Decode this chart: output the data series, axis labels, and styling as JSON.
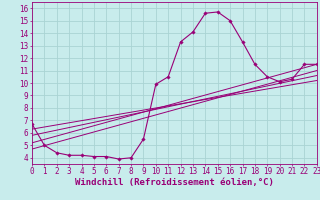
{
  "background_color": "#c8ecec",
  "grid_color": "#aad4d4",
  "line_color": "#990077",
  "xlabel": "Windchill (Refroidissement éolien,°C)",
  "xlim": [
    0,
    23
  ],
  "ylim": [
    3.5,
    16.5
  ],
  "yticks": [
    4,
    5,
    6,
    7,
    8,
    9,
    10,
    11,
    12,
    13,
    14,
    15,
    16
  ],
  "xticks": [
    0,
    1,
    2,
    3,
    4,
    5,
    6,
    7,
    8,
    9,
    10,
    11,
    12,
    13,
    14,
    15,
    16,
    17,
    18,
    19,
    20,
    21,
    22,
    23
  ],
  "curve1_x": [
    0,
    1,
    2,
    3,
    4,
    5,
    6,
    7,
    8,
    9,
    10,
    11,
    12,
    13,
    14,
    15,
    16,
    17,
    18,
    19,
    20,
    21,
    22,
    23
  ],
  "curve1_y": [
    6.7,
    5.0,
    4.4,
    4.2,
    4.2,
    4.1,
    4.1,
    3.9,
    4.0,
    5.5,
    9.9,
    10.5,
    13.3,
    14.1,
    15.6,
    15.7,
    15.0,
    13.3,
    11.5,
    10.5,
    10.1,
    10.3,
    11.5,
    11.5
  ],
  "line2_x": [
    0,
    23
  ],
  "line2_y": [
    5.2,
    11.5
  ],
  "line3_x": [
    0,
    23
  ],
  "line3_y": [
    5.8,
    10.6
  ],
  "line4_x": [
    0,
    23
  ],
  "line4_y": [
    6.3,
    10.2
  ],
  "line5_x": [
    0,
    23
  ],
  "line5_y": [
    4.7,
    11.0
  ],
  "font_size_ticks": 5.5,
  "font_size_label": 6.5
}
